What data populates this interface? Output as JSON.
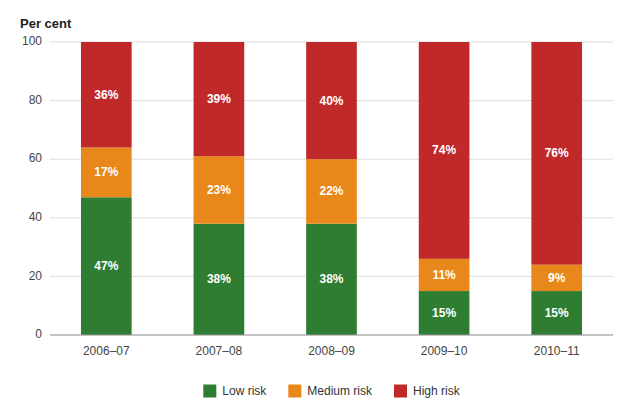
{
  "chart_data": {
    "type": "bar",
    "stacked": true,
    "ylabel": "Per cent",
    "categories": [
      "2006–07",
      "2007–08",
      "2008–09",
      "2009–10",
      "2010–11"
    ],
    "series": [
      {
        "name": "Low risk",
        "color": "#2e7d32",
        "values": [
          47,
          38,
          38,
          15,
          15
        ],
        "value_labels": [
          "47%",
          "38%",
          "38%",
          "15%",
          "15%"
        ]
      },
      {
        "name": "Medium risk",
        "color": "#e8871a",
        "values": [
          17,
          23,
          22,
          11,
          9
        ],
        "value_labels": [
          "17%",
          "23%",
          "22%",
          "11%",
          "9%"
        ]
      },
      {
        "name": "High risk",
        "color": "#c0292a",
        "values": [
          36,
          39,
          40,
          74,
          76
        ],
        "value_labels": [
          "36%",
          "39%",
          "40%",
          "74%",
          "76%"
        ]
      }
    ],
    "ylim": [
      0,
      100
    ],
    "yticks": [
      0,
      20,
      40,
      60,
      80,
      100
    ],
    "grid": true,
    "legend": "bottom",
    "data_labels": true
  }
}
